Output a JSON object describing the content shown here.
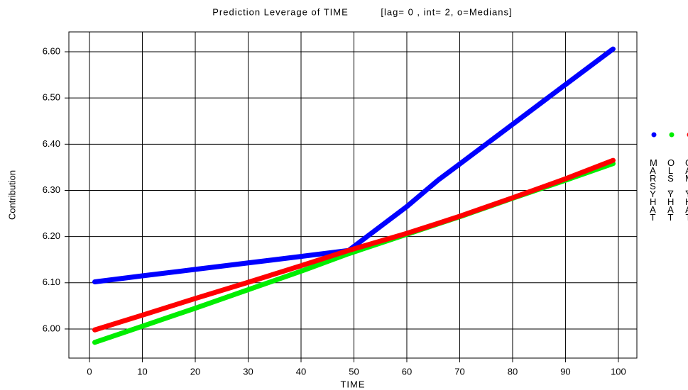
{
  "chart_data": {
    "type": "line",
    "title": "Prediction Leverage of TIME",
    "subtitle": "[lag= 0 , int= 2, o=Medians]",
    "x_label": "TIME",
    "y_label": "Contribution",
    "x": [
      1,
      10,
      20,
      30,
      40,
      49,
      60,
      66,
      70,
      80,
      90,
      99
    ],
    "series": [
      {
        "name": "MARSYHAT",
        "color": "#0000ff",
        "values": [
          6.102,
          6.115,
          6.129,
          6.143,
          6.157,
          6.17,
          6.265,
          6.323,
          6.357,
          6.443,
          6.529,
          6.606
        ]
      },
      {
        "name": "OLS_YHAT",
        "color": "#00ee00",
        "values": [
          5.971,
          6.006,
          6.045,
          6.085,
          6.125,
          6.163,
          6.205,
          6.228,
          6.243,
          6.283,
          6.322,
          6.358
        ]
      },
      {
        "name": "GAM_YHAT",
        "color": "#ff0000",
        "values": [
          5.998,
          6.03,
          6.066,
          6.101,
          6.137,
          6.17,
          6.207,
          6.229,
          6.244,
          6.284,
          6.325,
          6.365
        ]
      }
    ],
    "xlim": [
      -3.9,
      103.5
    ],
    "xticks": [
      0,
      10,
      20,
      30,
      40,
      50,
      60,
      70,
      80,
      90,
      100
    ],
    "ylim": [
      5.937,
      6.643
    ],
    "yticks": [
      {
        "value": 6.0,
        "label": "6.00"
      },
      {
        "value": 6.1,
        "label": "6.10"
      },
      {
        "value": 6.2,
        "label": "6.20"
      },
      {
        "value": 6.3,
        "label": "6.30"
      },
      {
        "value": 6.4,
        "label": "6.40"
      },
      {
        "value": 6.5,
        "label": "6.50"
      },
      {
        "value": 6.6,
        "label": "6.60"
      }
    ],
    "grid": true,
    "legend_position": "right"
  }
}
